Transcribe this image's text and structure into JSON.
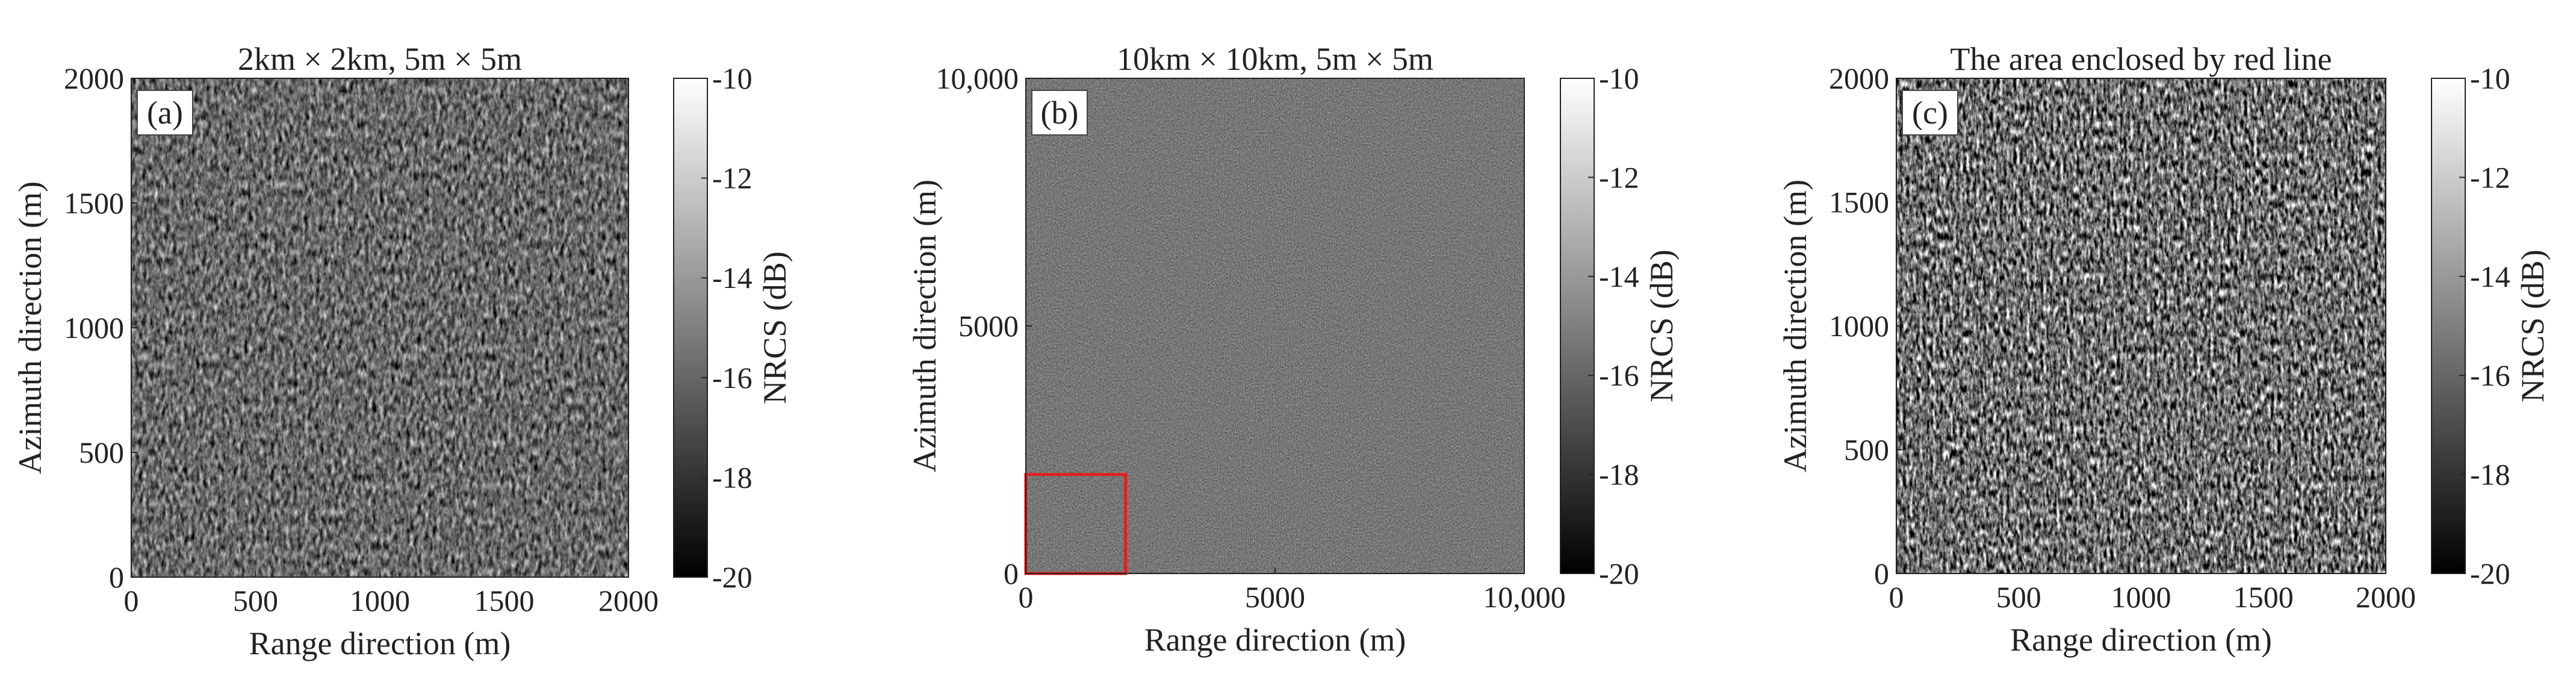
{
  "colorbar_ticks": [
    "-10",
    "-12",
    "-14",
    "-16",
    "-18",
    "-20"
  ],
  "chart_data": [
    {
      "type": "heatmap",
      "panel_label": "(a)",
      "title": "2km × 2km, 5m × 5m",
      "xlabel": "Range direction (m)",
      "ylabel": "Azimuth direction (m)",
      "xlim": [
        0,
        2000
      ],
      "ylim": [
        0,
        2000
      ],
      "xticks": [
        0,
        500,
        1000,
        1500,
        2000
      ],
      "xtick_labels": [
        "0",
        "500",
        "1000",
        "1500",
        "2000"
      ],
      "yticks": [
        0,
        500,
        1000,
        1500,
        2000
      ],
      "ytick_labels": [
        "0",
        "500",
        "1000",
        "1500",
        "2000"
      ],
      "grid_resolution_m": 5,
      "texture": "coarse",
      "colorbar": {
        "label": "NRCS (dB)",
        "range": [
          -20,
          -10
        ],
        "colormap": "gray"
      }
    },
    {
      "type": "heatmap",
      "panel_label": "(b)",
      "title": "10km × 10km, 5m × 5m",
      "xlabel": "Range direction (m)",
      "ylabel": "Azimuth direction (m)",
      "xlim": [
        0,
        10000
      ],
      "ylim": [
        0,
        10000
      ],
      "xticks": [
        0,
        5000,
        10000
      ],
      "xtick_labels": [
        "0",
        "5000",
        "10,000"
      ],
      "yticks": [
        0,
        5000,
        10000
      ],
      "ytick_labels": [
        "0",
        "5000",
        "10,000"
      ],
      "grid_resolution_m": 5,
      "texture": "fine",
      "highlight_box": {
        "x": [
          0,
          2000
        ],
        "y": [
          0,
          2000
        ],
        "color": "#e02020"
      },
      "colorbar": {
        "label": "NRCS (dB)",
        "range": [
          -20,
          -10
        ],
        "colormap": "gray"
      }
    },
    {
      "type": "heatmap",
      "panel_label": "(c)",
      "title": "The area enclosed by red line",
      "xlabel": "Range direction (m)",
      "ylabel": "Azimuth direction (m)",
      "xlim": [
        0,
        2000
      ],
      "ylim": [
        0,
        2000
      ],
      "xticks": [
        0,
        500,
        1000,
        1500,
        2000
      ],
      "xtick_labels": [
        "0",
        "500",
        "1000",
        "1500",
        "2000"
      ],
      "yticks": [
        0,
        500,
        1000,
        1500,
        2000
      ],
      "ytick_labels": [
        "0",
        "500",
        "1000",
        "1500",
        "2000"
      ],
      "grid_resolution_m": 5,
      "texture": "high-contrast",
      "colorbar": {
        "label": "NRCS (dB)",
        "range": [
          -20,
          -10
        ],
        "colormap": "gray"
      }
    }
  ]
}
